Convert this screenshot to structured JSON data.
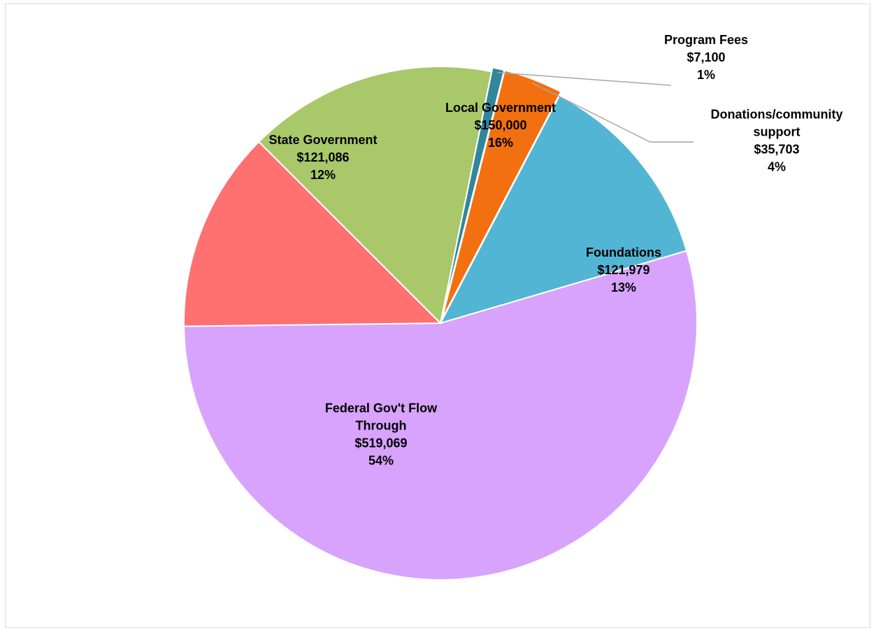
{
  "chart_data": {
    "type": "pie",
    "title": "",
    "slices": [
      {
        "label_lines": [
          "Program Fees"
        ],
        "amount": "$7,100",
        "percent": "1%",
        "value": 7100,
        "color": "#31869b"
      },
      {
        "label_lines": [
          "Donations/community",
          "support"
        ],
        "amount": "$35,703",
        "percent": "4%",
        "value": 35703,
        "color": "#f2700f"
      },
      {
        "label_lines": [
          "Foundations"
        ],
        "amount": "$121,979",
        "percent": "13%",
        "value": 121979,
        "color": "#52b5d4"
      },
      {
        "label_lines": [
          "Federal Gov't Flow",
          "Through"
        ],
        "amount": "$519,069",
        "percent": "54%",
        "value": 519069,
        "color": "#d7a3fc"
      },
      {
        "label_lines": [
          "State Government"
        ],
        "amount": "$121,086",
        "percent": "12%",
        "value": 121086,
        "color": "#ff7070"
      },
      {
        "label_lines": [
          "Local Government"
        ],
        "amount": "$150,000",
        "percent": "16%",
        "value": 150000,
        "color": "#a9c86a"
      }
    ],
    "legend": "none",
    "data_labels": "category, value, percent"
  }
}
